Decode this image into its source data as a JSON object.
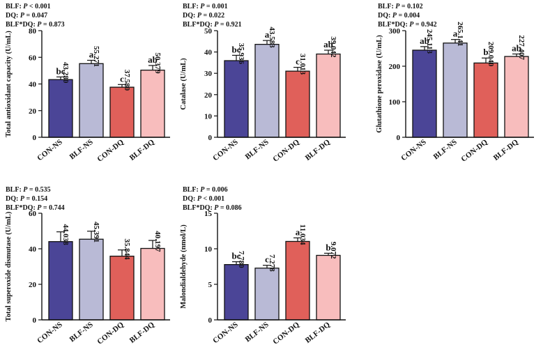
{
  "colors": [
    "#4b4597",
    "#b9bad6",
    "#e0605a",
    "#f8bdbd"
  ],
  "chart_data": [
    {
      "type": "bar",
      "ylabel": "Total antioxidant capacity (U/mL)",
      "stats": [
        {
          "label": "BLF: ",
          "p": "P",
          "rest": " < 0.001"
        },
        {
          "label": "DQ: ",
          "p": "P",
          "rest": " = 0.047"
        },
        {
          "label": "BLF*DQ: ",
          "p": "P",
          "rest": " = 0.873"
        }
      ],
      "categories": [
        "CON-NS",
        "BLF-NS",
        "CON-DQ",
        "BLF-DQ"
      ],
      "values": [
        43.28,
        55.271,
        37.58,
        50.379
      ],
      "errors": [
        2.0,
        2.5,
        2.0,
        3.5
      ],
      "value_labels": [
        "43.280",
        "55.271",
        "37.580",
        "50.379"
      ],
      "letters": [
        "bc",
        "a",
        "c",
        "ab"
      ],
      "ylim": [
        0,
        80
      ],
      "yticks": [
        "0",
        "20",
        "40",
        "60",
        "80"
      ]
    },
    {
      "type": "bar",
      "ylabel": "Catalase (U/mL)",
      "stats": [
        {
          "label": "BLF: ",
          "p": "P",
          "rest": " = 0.001"
        },
        {
          "label": "DQ: ",
          "p": "P",
          "rest": " = 0.022"
        },
        {
          "label": "BLF*DQ: ",
          "p": "P",
          "rest": " = 0.921"
        }
      ],
      "categories": [
        "CON-NS",
        "BLF-NS",
        "CON-DQ",
        "BLF-DQ"
      ],
      "values": [
        35.936,
        43.583,
        31.013,
        39.042
      ],
      "errors": [
        2.5,
        1.8,
        1.8,
        1.8
      ],
      "value_labels": [
        "35.936",
        "43.583",
        "31.013",
        "39.042"
      ],
      "letters": [
        "bc",
        "a",
        "c",
        "ab"
      ],
      "ylim": [
        0,
        50
      ],
      "yticks": [
        "0",
        "10",
        "20",
        "30",
        "40",
        "50"
      ]
    },
    {
      "type": "bar",
      "ylabel": "Glutathione peroxidase (U/mL)",
      "stats": [
        {
          "label": "BLF: ",
          "p": "P",
          "rest": " = 0.102"
        },
        {
          "label": "DQ: ",
          "p": "P",
          "rest": " = 0.004"
        },
        {
          "label": "BLF*DQ: ",
          "p": "P",
          "rest": " = 0.942"
        }
      ],
      "categories": [
        "CON-NS",
        "BLF-NS",
        "CON-DQ",
        "BLF-DQ"
      ],
      "values": [
        245.113,
        265.141,
        209.04,
        227.407
      ],
      "errors": [
        10,
        10,
        14,
        7
      ],
      "value_labels": [
        "245.113",
        "265.141",
        "209.040",
        "227.407"
      ],
      "letters": [
        "ab",
        "a",
        "b",
        "ab"
      ],
      "ylim": [
        0,
        300
      ],
      "yticks": [
        "0",
        "100",
        "200",
        "300"
      ]
    },
    {
      "type": "bar",
      "ylabel": "Total superoxide dismutase (U/mL)",
      "stats": [
        {
          "label": "BLF: ",
          "p": "P",
          "rest": " = 0.535"
        },
        {
          "label": "DQ: ",
          "p": "P",
          "rest": " = 0.154"
        },
        {
          "label": "BLF*DQ: ",
          "p": "P",
          "rest": " = 0.744"
        }
      ],
      "categories": [
        "CON-NS",
        "BLF-NS",
        "CON-DQ",
        "BLF-DQ"
      ],
      "values": [
        44.038,
        45.391,
        35.844,
        40.197
      ],
      "errors": [
        5.5,
        4.5,
        3.5,
        4.5
      ],
      "value_labels": [
        "44.038",
        "45.391",
        "35.844",
        "40.197"
      ],
      "letters": [
        "",
        "",
        "",
        ""
      ],
      "ylim": [
        0,
        60
      ],
      "yticks": [
        "0",
        "20",
        "40",
        "60"
      ]
    },
    {
      "type": "bar",
      "ylabel": "Malondialdehyde (nmol/L)",
      "stats": [
        {
          "label": "BLF: ",
          "p": "P",
          "rest": " = 0.006"
        },
        {
          "label": "DQ: ",
          "p": "P",
          "rest": " < 0.001"
        },
        {
          "label": "BLF*DQ: ",
          "p": "P",
          "rest": " = 0.086"
        }
      ],
      "categories": [
        "CON-NS",
        "BLF-NS",
        "CON-DQ",
        "BLF-DQ"
      ],
      "values": [
        7.78,
        7.278,
        11.034,
        9.072
      ],
      "errors": [
        0.4,
        0.4,
        0.5,
        0.3
      ],
      "value_labels": [
        "7.780",
        "7.278",
        "11.034",
        "9.072"
      ],
      "letters": [
        "bc",
        "c",
        "a",
        "b"
      ],
      "ylim": [
        0,
        15
      ],
      "yticks": [
        "0",
        "5",
        "10",
        "15"
      ]
    }
  ]
}
